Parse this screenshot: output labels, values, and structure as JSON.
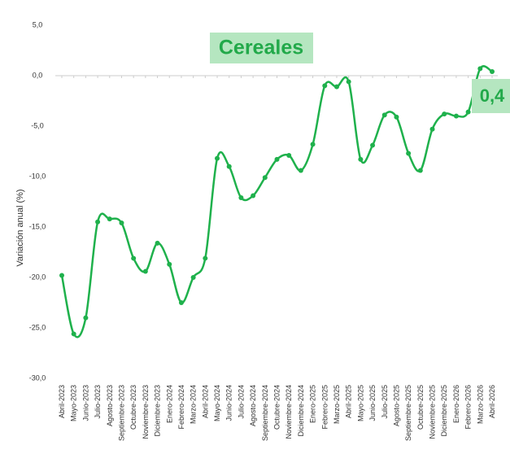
{
  "chart_data": {
    "type": "line",
    "title": "Cereales",
    "y_label": "Variación anual (%)",
    "categories": [
      "Abril-2023",
      "Mayo-2023",
      "Junio-2023",
      "Julio-2023",
      "Agosto-2023",
      "Septiembre-2023",
      "Octubre-2023",
      "Noviembre-2023",
      "Diciembre-2023",
      "Enero-2024",
      "Febrero-2024",
      "Marzo-2024",
      "Abril-2024",
      "Mayo-2024",
      "Junio-2024",
      "Julio-2024",
      "Agosto-2024",
      "Septiembre-2024",
      "Octubre-2024",
      "Noviembre-2024",
      "Diciembre-2024",
      "Enero-2025",
      "Febrero-2025",
      "Marzo-2025",
      "Abril-2025",
      "Mayo-2025",
      "Junio-2025",
      "Julio-2025",
      "Agosto-2025",
      "Septiembre-2025",
      "Octubre-2025",
      "Noviembre-2025",
      "Diciembre-2025",
      "Enero-2026",
      "Febrero-2026",
      "Marzo-2026",
      "Abril-2026"
    ],
    "values": [
      -19.8,
      -25.6,
      -24.0,
      -14.5,
      -14.2,
      -14.6,
      -18.1,
      -19.4,
      -16.6,
      -18.7,
      -22.5,
      -20.0,
      -18.1,
      -8.2,
      -9.0,
      -12.1,
      -11.9,
      -10.1,
      -8.3,
      -7.9,
      -9.4,
      -6.8,
      -1.0,
      -1.1,
      -0.6,
      -8.3,
      -6.9,
      -3.9,
      -4.1,
      -7.7,
      -9.4,
      -5.3,
      -3.8,
      -4.0,
      -3.6,
      0.7,
      0.4
    ],
    "value_labels": [
      null,
      null,
      null,
      null,
      null,
      null,
      null,
      null,
      null,
      null,
      null,
      null,
      null,
      null,
      null,
      null,
      null,
      null,
      null,
      null,
      null,
      null,
      null,
      null,
      null,
      null,
      null,
      null,
      null,
      null,
      null,
      null,
      null,
      null,
      null,
      null,
      "0,4"
    ],
    "color": "#1fb14c",
    "ylim": [
      -30,
      5
    ],
    "yticks": [
      {
        "value": 5,
        "label": "5,0"
      },
      {
        "value": 0,
        "label": "0,0"
      },
      {
        "value": -5,
        "label": "-5,0"
      },
      {
        "value": -10,
        "label": "-10,0"
      },
      {
        "value": -15,
        "label": "-15,0"
      },
      {
        "value": -20,
        "label": "-20,0"
      },
      {
        "value": -25,
        "label": "-25,0"
      },
      {
        "value": -30,
        "label": "-30,0"
      }
    ]
  }
}
